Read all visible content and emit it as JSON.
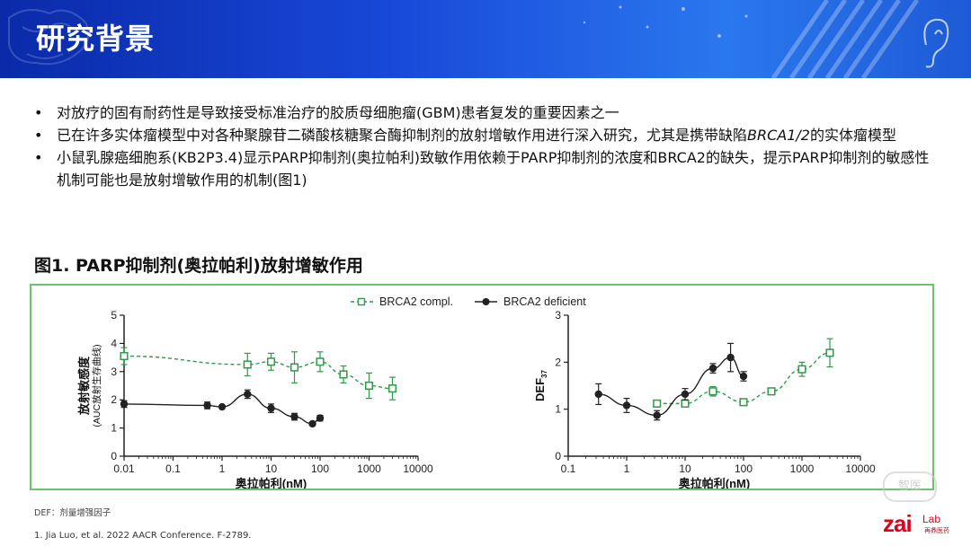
{
  "header": {
    "title": "研究背景"
  },
  "bullets": [
    {
      "text": "对放疗的固有耐药性是导致接受标准治疗的胶质母细胞瘤(GBM)患者复发的重要因素之一"
    },
    {
      "text_before": "已在许多实体瘤模型中对各种聚腺苷二磷酸核糖聚合酶抑制剂的放射增敏作用进行深入研究，尤其是携带缺陷",
      "text_italic": "BRCA1/2",
      "text_after": "的实体瘤模型"
    },
    {
      "text": "小鼠乳腺癌细胞系(KB2P3.4)显示PARP抑制剂(奥拉帕利)致敏作用依赖于PARP抑制剂的浓度和BRCA2的缺失，提示PARP抑制剂的敏感性机制可能也是放射增敏作用的机制(图1)"
    }
  ],
  "figure": {
    "title": "图1. PARP抑制剂(奥拉帕利)放射增敏作用"
  },
  "chart_data": [
    {
      "type": "scatter",
      "xscale": "log",
      "xlim": [
        0.01,
        10000
      ],
      "ylim": [
        0,
        5
      ],
      "xticks": [
        "0.01",
        "0.1",
        "1",
        "10",
        "100",
        "1000",
        "10000"
      ],
      "yticks": [
        "0",
        "1",
        "2",
        "3",
        "4",
        "5"
      ],
      "xlabel": "奥拉帕利(nM)",
      "ylabel": "放射敏感度",
      "ylabel_sub": "(AUC放射生存曲线)",
      "series": [
        {
          "name": "BRCA2 compl.",
          "color": "#2e9a4a",
          "marker": "open-square",
          "line": "dashed",
          "x": [
            0.01,
            3.3,
            10,
            30,
            100,
            300,
            1000,
            3000
          ],
          "y": [
            3.55,
            3.25,
            3.35,
            3.15,
            3.35,
            2.9,
            2.5,
            2.4
          ],
          "err": [
            0.3,
            0.4,
            0.3,
            0.55,
            0.35,
            0.3,
            0.45,
            0.4
          ]
        },
        {
          "name": "BRCA2 deficient",
          "color": "#222222",
          "marker": "filled-circle",
          "line": "solid",
          "x": [
            0.01,
            0.5,
            1,
            3.3,
            10,
            30,
            70,
            100
          ],
          "y": [
            1.85,
            1.8,
            1.75,
            2.2,
            1.7,
            1.4,
            1.15,
            1.35
          ],
          "err": [
            0.12,
            0.12,
            0.05,
            0.15,
            0.15,
            0.12,
            0.05,
            0.1
          ]
        }
      ]
    },
    {
      "type": "scatter",
      "xscale": "log",
      "xlim": [
        0.1,
        10000
      ],
      "ylim": [
        0,
        3
      ],
      "xticks": [
        "0.1",
        "1",
        "10",
        "100",
        "1000",
        "10000"
      ],
      "yticks": [
        "0",
        "1",
        "2",
        "3"
      ],
      "xlabel": "奥拉帕利(nM)",
      "ylabel": "DEF",
      "ylabel_sub": "37",
      "series": [
        {
          "name": "BRCA2 compl.",
          "color": "#2e9a4a",
          "marker": "open-square",
          "line": "dashed",
          "x": [
            3.3,
            10,
            30,
            100,
            300,
            1000,
            3000
          ],
          "y": [
            1.12,
            1.12,
            1.38,
            1.15,
            1.38,
            1.85,
            2.2
          ],
          "err": [
            0.05,
            0.05,
            0.1,
            0.05,
            0.05,
            0.15,
            0.3
          ]
        },
        {
          "name": "BRCA2 deficient",
          "color": "#222222",
          "marker": "filled-circle",
          "line": "solid",
          "x": [
            0.33,
            1,
            3.3,
            10,
            30,
            60,
            100
          ],
          "y": [
            1.32,
            1.08,
            0.87,
            1.32,
            1.87,
            2.1,
            1.7
          ],
          "err": [
            0.22,
            0.15,
            0.1,
            0.12,
            0.1,
            0.3,
            0.1
          ]
        }
      ]
    }
  ],
  "footnotes": {
    "abbrev": "DEF：剂量增强因子",
    "reference": "1.   Jia Luo, et al. 2022 AACR Conference. F-2789."
  },
  "logo": {
    "text_main": "zai",
    "text_lab": "Lab",
    "text_cn": "再鼎医药",
    "color": "#e0001b"
  },
  "watermark": {
    "text": "智医"
  }
}
